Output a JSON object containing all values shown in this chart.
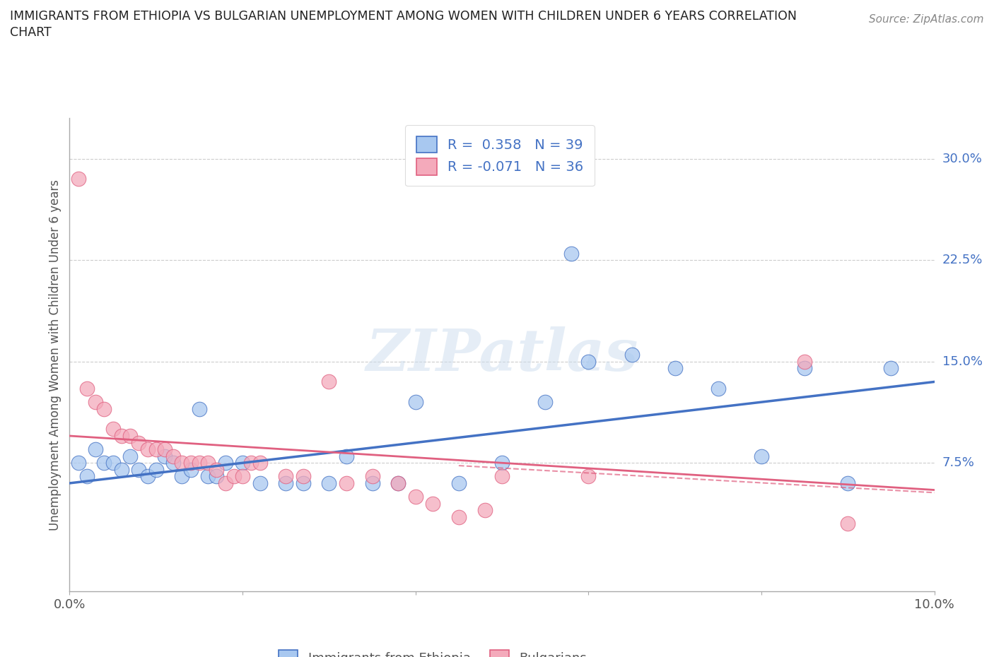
{
  "title_line1": "IMMIGRANTS FROM ETHIOPIA VS BULGARIAN UNEMPLOYMENT AMONG WOMEN WITH CHILDREN UNDER 6 YEARS CORRELATION",
  "title_line2": "CHART",
  "source": "Source: ZipAtlas.com",
  "ylabel": "Unemployment Among Women with Children Under 6 years",
  "xlim": [
    0.0,
    0.1
  ],
  "ylim": [
    -0.02,
    0.33
  ],
  "yticks_right": [
    0.075,
    0.15,
    0.225,
    0.3
  ],
  "ytick_right_labels": [
    "7.5%",
    "15.0%",
    "22.5%",
    "30.0%"
  ],
  "legend_r1": "R =  0.358   N = 39",
  "legend_r2": "R = -0.071   N = 36",
  "color_blue": "#A8C8F0",
  "color_pink": "#F4AABB",
  "color_blue_line": "#4472C4",
  "color_pink_line": "#E06080",
  "blue_scatter_x": [
    0.001,
    0.002,
    0.003,
    0.004,
    0.005,
    0.006,
    0.007,
    0.008,
    0.009,
    0.01,
    0.011,
    0.012,
    0.013,
    0.014,
    0.015,
    0.016,
    0.017,
    0.018,
    0.02,
    0.022,
    0.025,
    0.027,
    0.03,
    0.032,
    0.035,
    0.038,
    0.04,
    0.045,
    0.05,
    0.055,
    0.058,
    0.06,
    0.065,
    0.07,
    0.075,
    0.08,
    0.085,
    0.09,
    0.095
  ],
  "blue_scatter_y": [
    0.075,
    0.065,
    0.085,
    0.075,
    0.075,
    0.07,
    0.08,
    0.07,
    0.065,
    0.07,
    0.08,
    0.075,
    0.065,
    0.07,
    0.115,
    0.065,
    0.065,
    0.075,
    0.075,
    0.06,
    0.06,
    0.06,
    0.06,
    0.08,
    0.06,
    0.06,
    0.12,
    0.06,
    0.075,
    0.12,
    0.23,
    0.15,
    0.155,
    0.145,
    0.13,
    0.08,
    0.145,
    0.06,
    0.145
  ],
  "pink_scatter_x": [
    0.001,
    0.002,
    0.003,
    0.004,
    0.005,
    0.006,
    0.007,
    0.008,
    0.009,
    0.01,
    0.011,
    0.012,
    0.013,
    0.014,
    0.015,
    0.016,
    0.017,
    0.018,
    0.019,
    0.02,
    0.021,
    0.022,
    0.025,
    0.027,
    0.03,
    0.032,
    0.035,
    0.038,
    0.04,
    0.042,
    0.045,
    0.048,
    0.05,
    0.06,
    0.085,
    0.09
  ],
  "pink_scatter_y": [
    0.285,
    0.13,
    0.12,
    0.115,
    0.1,
    0.095,
    0.095,
    0.09,
    0.085,
    0.085,
    0.085,
    0.08,
    0.075,
    0.075,
    0.075,
    0.075,
    0.07,
    0.06,
    0.065,
    0.065,
    0.075,
    0.075,
    0.065,
    0.065,
    0.135,
    0.06,
    0.065,
    0.06,
    0.05,
    0.045,
    0.035,
    0.04,
    0.065,
    0.065,
    0.15,
    0.03
  ],
  "blue_trend_x": [
    0.0,
    0.1
  ],
  "blue_trend_y": [
    0.06,
    0.135
  ],
  "pink_trend_x": [
    0.0,
    0.1
  ],
  "pink_trend_y": [
    0.095,
    0.055
  ],
  "watermark": "ZIPatlas"
}
